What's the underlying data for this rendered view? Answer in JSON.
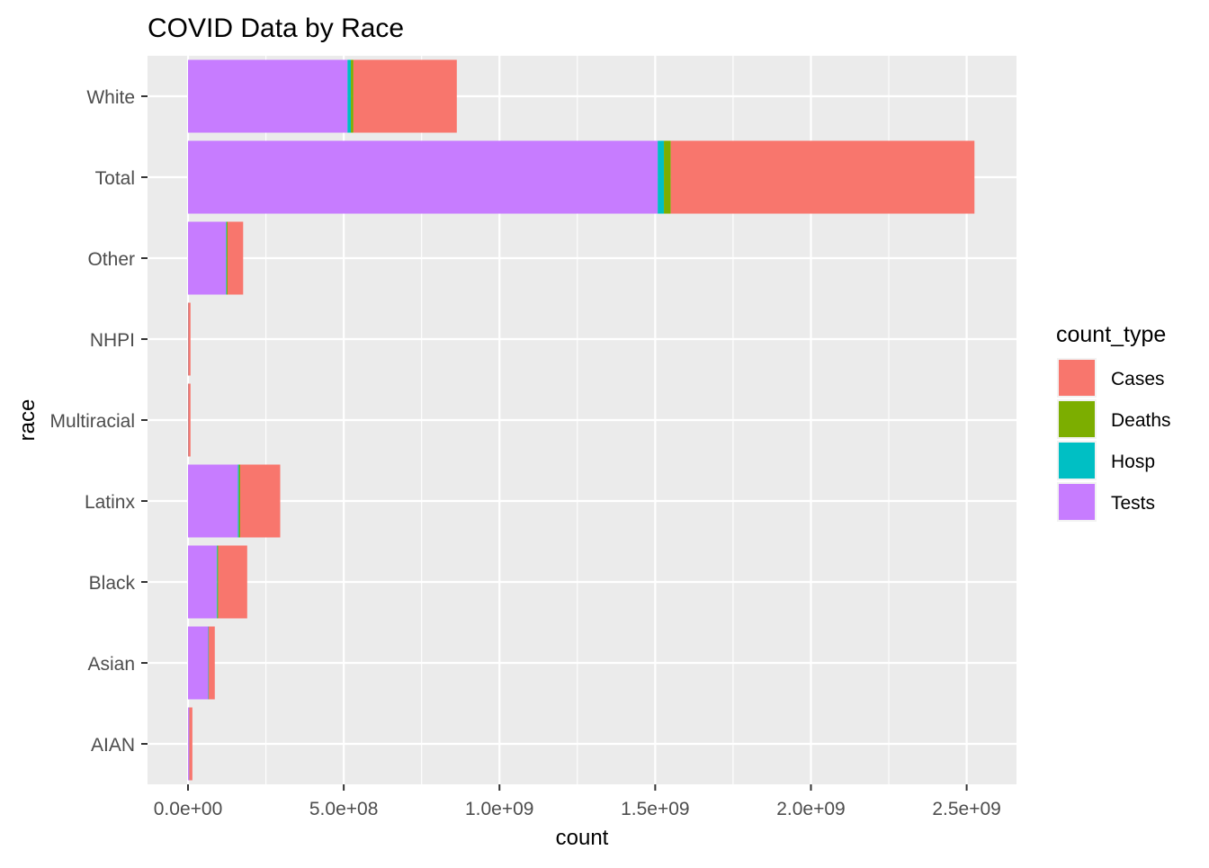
{
  "chart_data": {
    "type": "bar",
    "orientation": "horizontal",
    "stacked": true,
    "title": "COVID Data by Race",
    "xlabel": "count",
    "ylabel": "race",
    "xlim": [
      -130000000,
      2660000000
    ],
    "x_ticks": [
      0,
      500000000,
      1000000000,
      1500000000,
      2000000000,
      2500000000
    ],
    "x_tick_labels": [
      "0.0e+00",
      "5.0e+08",
      "1.0e+09",
      "1.5e+09",
      "2.0e+09",
      "2.5e+09"
    ],
    "categories": [
      "AIAN",
      "Asian",
      "Black",
      "Latinx",
      "Multiracial",
      "NHPI",
      "Other",
      "Total",
      "White"
    ],
    "series": [
      {
        "name": "Tests",
        "color": "#C77CFF",
        "values": [
          4000000,
          65000000,
          92000000,
          160000000,
          1000000,
          1000000,
          122000000,
          1508000000,
          512000000
        ]
      },
      {
        "name": "Hosp",
        "color": "#00BFC4",
        "values": [
          150000,
          1000000,
          2500000,
          3500000,
          50000,
          50000,
          2000000,
          20000000,
          11000000
        ]
      },
      {
        "name": "Deaths",
        "color": "#7CAE00",
        "values": [
          100000,
          500000,
          2500000,
          4000000,
          50000,
          50000,
          3000000,
          22000000,
          8000000
        ]
      },
      {
        "name": "Cases",
        "color": "#F8766D",
        "values": [
          9750000,
          19500000,
          93000000,
          128500000,
          6900000,
          6900000,
          50000000,
          975000000,
          332000000
        ]
      }
    ],
    "legend": {
      "title": "count_type",
      "entries": [
        "Cases",
        "Deaths",
        "Hosp",
        "Tests"
      ],
      "position": "right"
    },
    "panel_background": "#EBEBEB",
    "grid": true,
    "grid_color": "#FFFFFF"
  }
}
